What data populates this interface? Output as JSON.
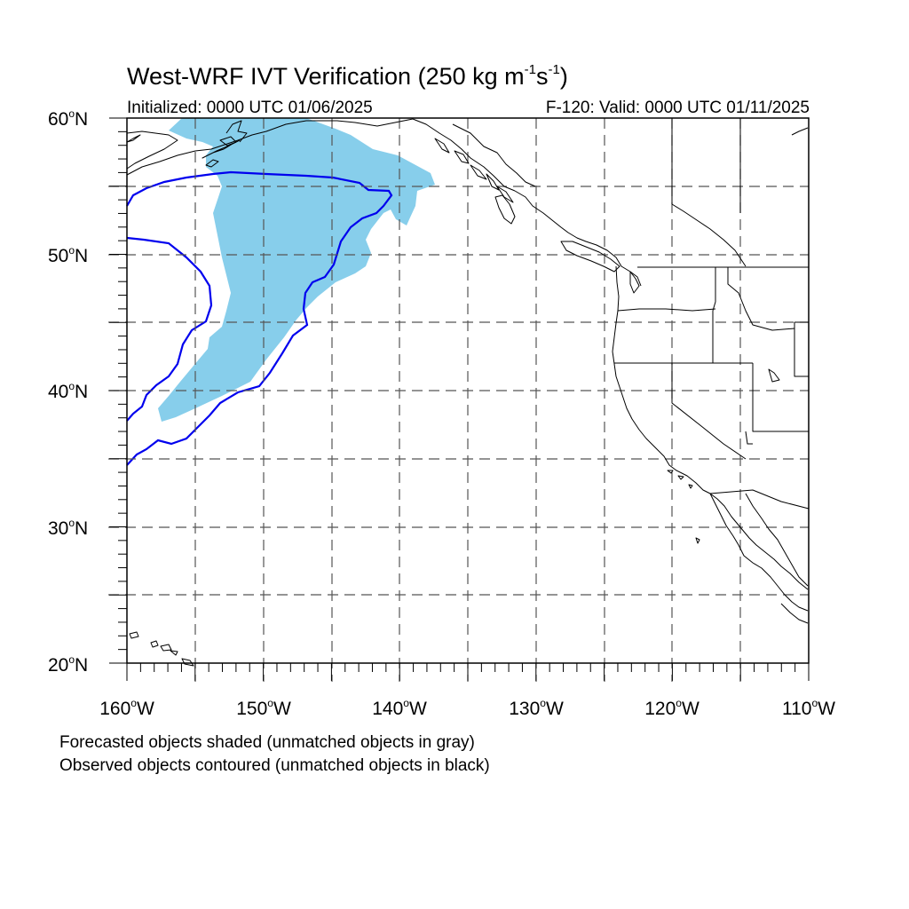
{
  "title": {
    "main": "West-WRF IVT Verification (250 kg m",
    "exp1": "-1",
    "mid": "s",
    "exp2": "-1",
    "close": ")"
  },
  "subtitle_left": "Initialized: 0000 UTC 01/06/2025",
  "subtitle_right": "F-120: Valid: 0000 UTC 01/11/2025",
  "lat_labels": [
    {
      "value": "60",
      "suffix": "N"
    },
    {
      "value": "50",
      "suffix": "N"
    },
    {
      "value": "40",
      "suffix": "N"
    },
    {
      "value": "30",
      "suffix": "N"
    },
    {
      "value": "20",
      "suffix": "N"
    }
  ],
  "lon_labels": [
    {
      "value": "160",
      "suffix": "W"
    },
    {
      "value": "150",
      "suffix": "W"
    },
    {
      "value": "140",
      "suffix": "W"
    },
    {
      "value": "130",
      "suffix": "W"
    },
    {
      "value": "120",
      "suffix": "W"
    },
    {
      "value": "110",
      "suffix": "W"
    }
  ],
  "footnotes": {
    "line1": "Forecasted objects shaded (unmatched objects in gray)",
    "line2": "Observed objects contoured (unmatched objects in black)"
  },
  "colors": {
    "forecast_fill": "#87ceeb",
    "observed_contour": "#0000ee",
    "coastline": "#000000",
    "grid": "#555555"
  },
  "map_extent": {
    "lon_min": -160,
    "lon_max": -110,
    "lat_min": 20,
    "lat_max": 60
  }
}
